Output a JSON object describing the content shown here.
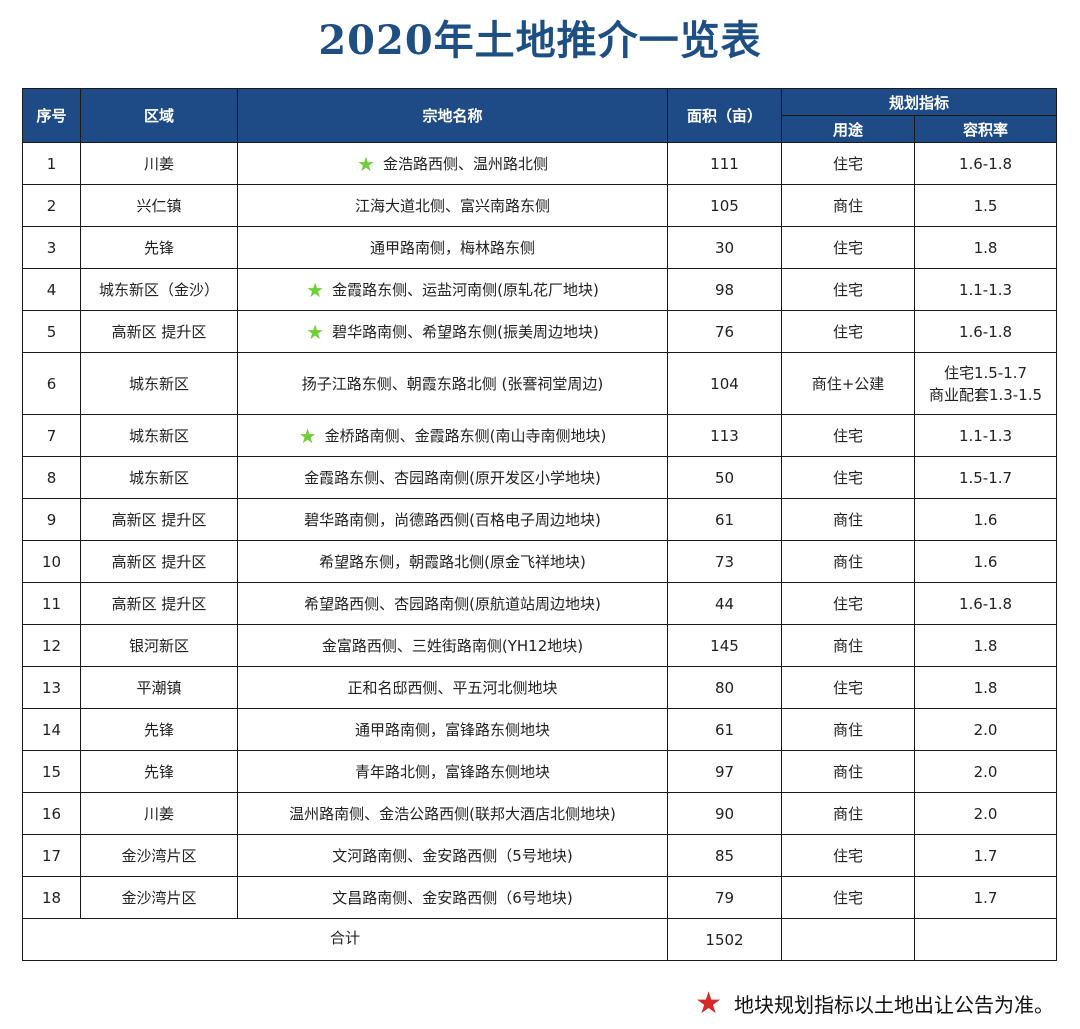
{
  "title": "2020年土地推介一览表",
  "colors": {
    "header_bg": "#1e4a86",
    "title": "#1e4f82",
    "star_green": "#6fcf3a",
    "star_red": "#d42a2a"
  },
  "headers": {
    "seq": "序号",
    "region": "区域",
    "name": "宗地名称",
    "area": "面积（亩）",
    "planning": "规划指标",
    "use": "用途",
    "ratio": "容积率"
  },
  "rows": [
    {
      "seq": "1",
      "region": "川姜",
      "name": "金浩路西侧、温州路北侧",
      "area": "111",
      "use": "住宅",
      "ratio": "1.6-1.8",
      "star": true
    },
    {
      "seq": "2",
      "region": "兴仁镇",
      "name": "江海大道北侧、富兴南路东侧",
      "area": "105",
      "use": "商住",
      "ratio": "1.5",
      "star": false
    },
    {
      "seq": "3",
      "region": "先锋",
      "name": "通甲路南侧，梅林路东侧",
      "area": "30",
      "use": "住宅",
      "ratio": "1.8",
      "star": false
    },
    {
      "seq": "4",
      "region": "城东新区（金沙）",
      "name": "金霞路东侧、运盐河南侧(原轧花厂地块)",
      "area": "98",
      "use": "住宅",
      "ratio": "1.1-1.3",
      "star": true
    },
    {
      "seq": "5",
      "region": "高新区 提升区",
      "name": "碧华路南侧、希望路东侧(振美周边地块)",
      "area": "76",
      "use": "住宅",
      "ratio": "1.6-1.8",
      "star": true
    },
    {
      "seq": "6",
      "region": "城东新区",
      "name": "扬子江路东侧、朝霞东路北侧 (张謇祠堂周边)",
      "area": "104",
      "use": "商住+公建",
      "ratio_lines": [
        "住宅1.5-1.7",
        "商业配套1.3-1.5"
      ],
      "star": false
    },
    {
      "seq": "7",
      "region": "城东新区",
      "name": "金桥路南侧、金霞路东侧(南山寺南侧地块)",
      "area": "113",
      "use": "住宅",
      "ratio": "1.1-1.3",
      "star": true
    },
    {
      "seq": "8",
      "region": "城东新区",
      "name": "金霞路东侧、杏园路南侧(原开发区小学地块)",
      "area": "50",
      "use": "住宅",
      "ratio": "1.5-1.7",
      "star": false
    },
    {
      "seq": "9",
      "region": "高新区 提升区",
      "name": "碧华路南侧，尚德路西侧(百格电子周边地块)",
      "area": "61",
      "use": "商住",
      "ratio": "1.6",
      "star": false
    },
    {
      "seq": "10",
      "region": "高新区 提升区",
      "name": "希望路东侧，朝霞路北侧(原金飞祥地块)",
      "area": "73",
      "use": "商住",
      "ratio": "1.6",
      "star": false
    },
    {
      "seq": "11",
      "region": "高新区 提升区",
      "name": "希望路西侧、杏园路南侧(原航道站周边地块)",
      "area": "44",
      "use": "住宅",
      "ratio": "1.6-1.8",
      "star": false
    },
    {
      "seq": "12",
      "region": "银河新区",
      "name": "金富路西侧、三姓街路南侧(YH12地块)",
      "area": "145",
      "use": "商住",
      "ratio": "1.8",
      "star": false
    },
    {
      "seq": "13",
      "region": "平潮镇",
      "name": "正和名邸西侧、平五河北侧地块",
      "area": "80",
      "use": "住宅",
      "ratio": "1.8",
      "star": false
    },
    {
      "seq": "14",
      "region": "先锋",
      "name": "通甲路南侧，富锋路东侧地块",
      "area": "61",
      "use": "商住",
      "ratio": "2.0",
      "star": false
    },
    {
      "seq": "15",
      "region": "先锋",
      "name": "青年路北侧，富锋路东侧地块",
      "area": "97",
      "use": "商住",
      "ratio": "2.0",
      "star": false
    },
    {
      "seq": "16",
      "region": "川姜",
      "name": "温州路南侧、金浩公路西侧(联邦大酒店北侧地块)",
      "area": "90",
      "use": "商住",
      "ratio": "2.0",
      "star": false
    },
    {
      "seq": "17",
      "region": "金沙湾片区",
      "name": "文河路南侧、金安路西侧（5号地块)",
      "area": "85",
      "use": "住宅",
      "ratio": "1.7",
      "star": false
    },
    {
      "seq": "18",
      "region": "金沙湾片区",
      "name": "文昌路南侧、金安路西侧（6号地块)",
      "area": "79",
      "use": "住宅",
      "ratio": "1.7",
      "star": false
    }
  ],
  "total": {
    "label": "合计",
    "area": "1502"
  },
  "footnote": "地块规划指标以土地出让公告为准。",
  "icons": {
    "row_marker": "green-star-icon",
    "footnote_marker": "red-star-icon"
  }
}
